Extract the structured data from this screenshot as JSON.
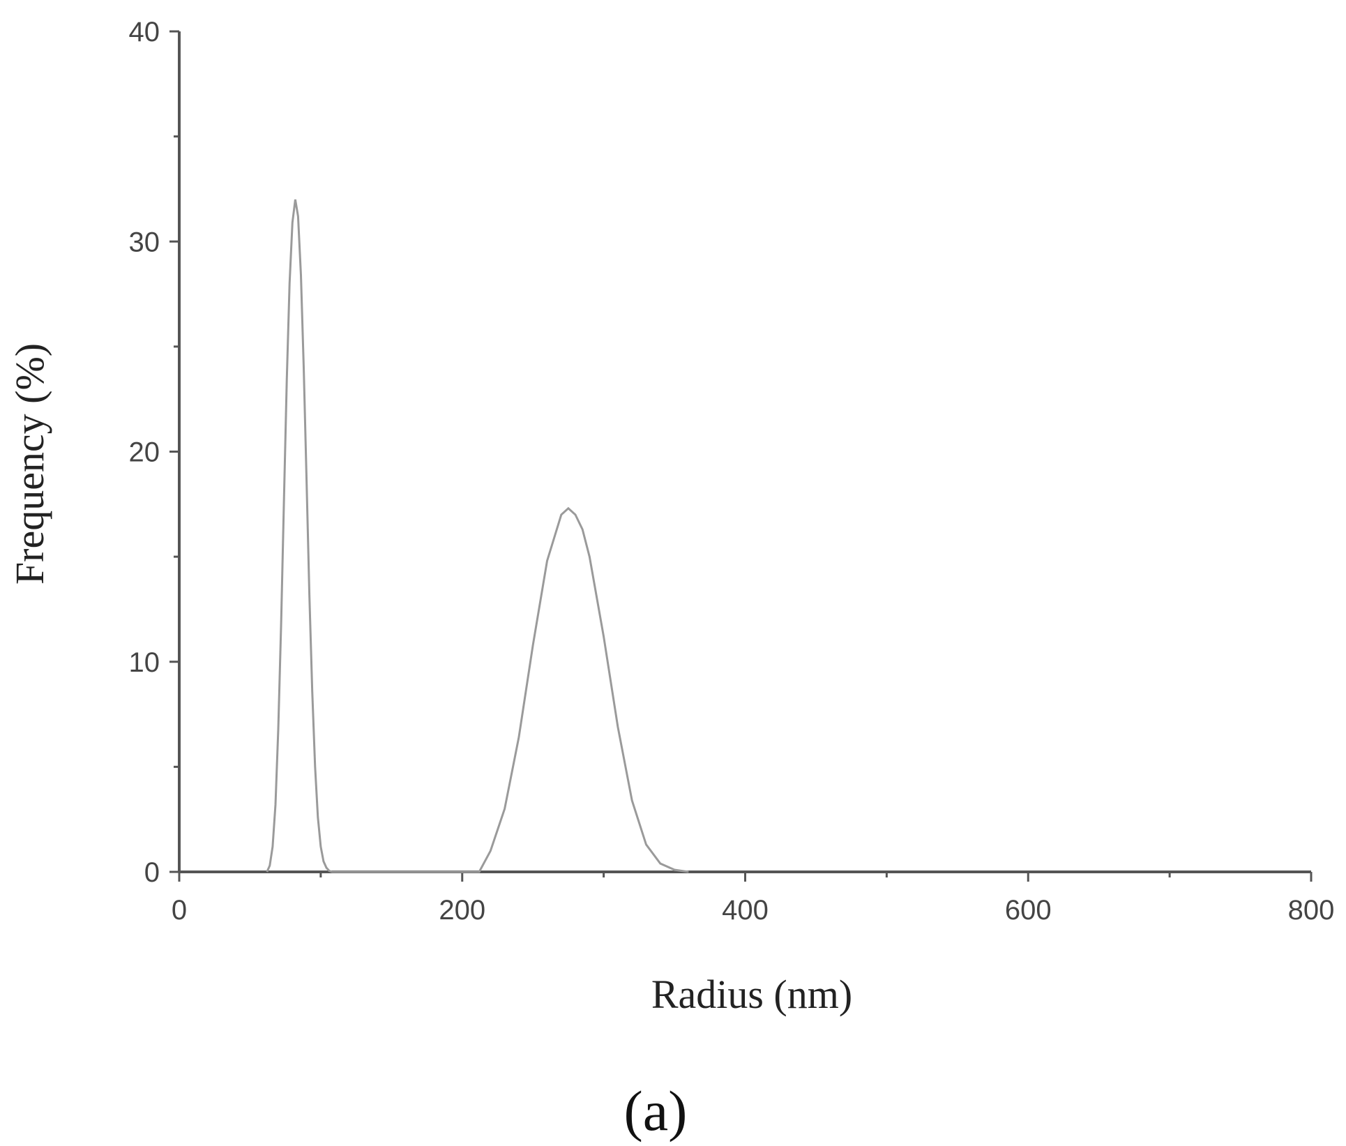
{
  "chart_data": {
    "type": "line",
    "xlabel": "Radius (nm)",
    "ylabel": "Frequency  (%)",
    "xlim": [
      0,
      800
    ],
    "ylim": [
      0,
      40
    ],
    "xticks": [
      0,
      200,
      400,
      600,
      800
    ],
    "yticks": [
      0,
      10,
      20,
      30,
      40
    ],
    "grid": false,
    "series": [
      {
        "color": "#9a9a9a",
        "x": [
          62,
          64,
          66,
          68,
          70,
          72,
          74,
          76,
          78,
          80,
          82,
          84,
          86,
          88,
          90,
          92,
          94,
          96,
          98,
          100,
          102,
          104,
          106,
          108,
          110,
          112,
          212,
          220,
          230,
          240,
          250,
          260,
          270,
          275,
          280,
          285,
          290,
          300,
          310,
          320,
          330,
          340,
          350,
          360
        ],
        "y": [
          0,
          0.3,
          1.2,
          3.2,
          6.8,
          11.8,
          17.6,
          23.4,
          28.0,
          30.9,
          32.0,
          31.2,
          28.4,
          24.0,
          18.6,
          13.2,
          8.6,
          5.0,
          2.6,
          1.2,
          0.5,
          0.2,
          0.05,
          0,
          0,
          0,
          0,
          1.0,
          3.0,
          6.4,
          10.8,
          14.8,
          17.0,
          17.3,
          17.0,
          16.3,
          15.0,
          11.2,
          6.9,
          3.4,
          1.3,
          0.4,
          0.1,
          0
        ]
      }
    ]
  },
  "caption": "(a)"
}
